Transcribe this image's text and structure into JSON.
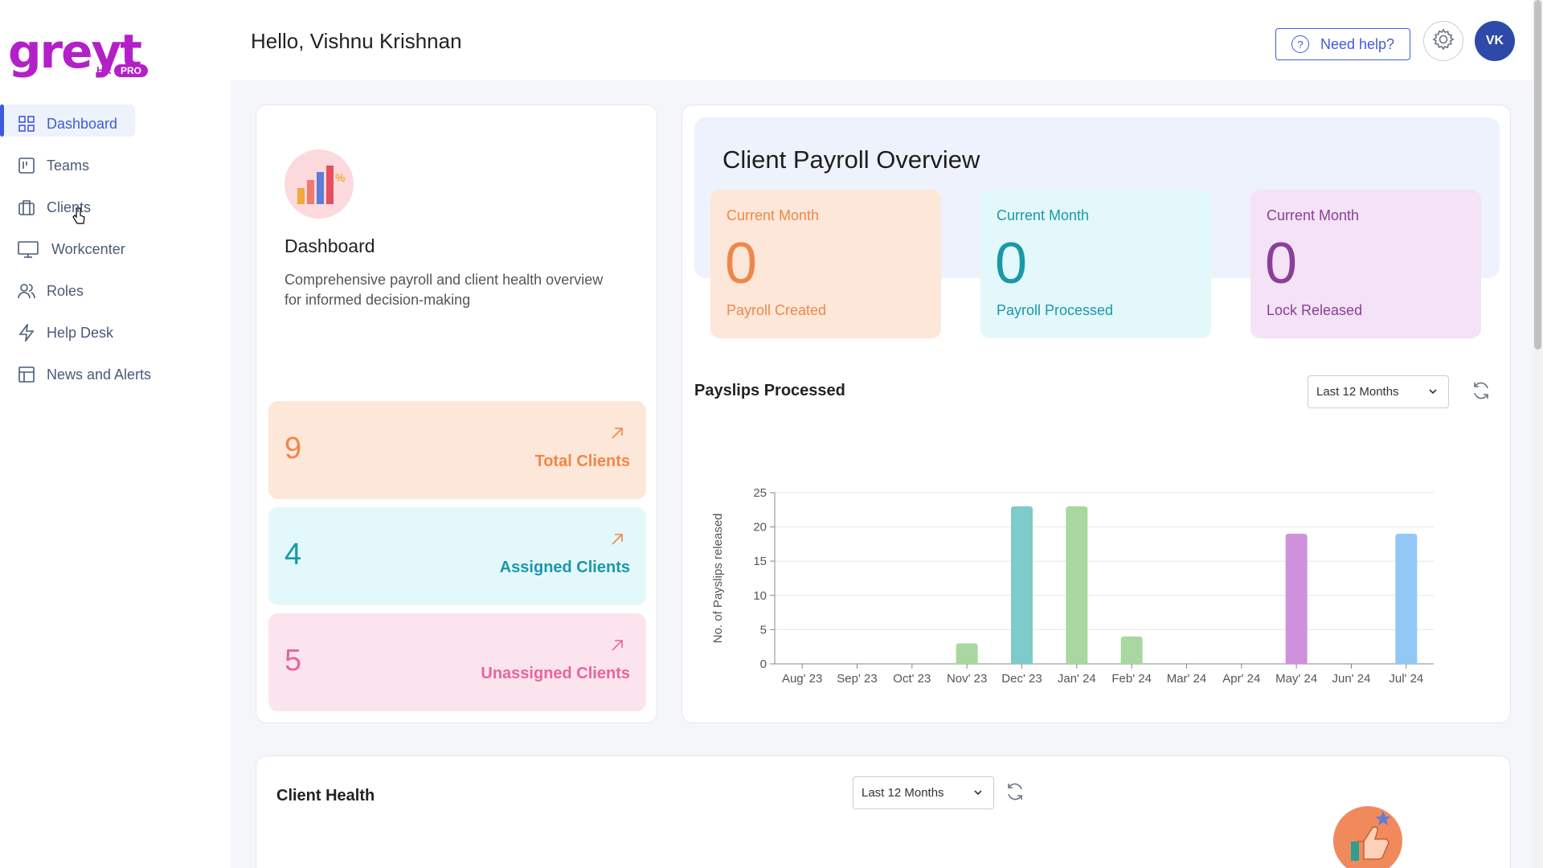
{
  "brand": {
    "logo_word": "greyt",
    "logo_hr": "HR",
    "logo_pro": "PRO"
  },
  "sidebar": {
    "items": [
      {
        "label": "Dashboard",
        "icon": "grid-icon",
        "active": true
      },
      {
        "label": "Teams",
        "icon": "board-icon"
      },
      {
        "label": "Clients",
        "icon": "briefcase-icon"
      },
      {
        "label": "Workcenter",
        "icon": "monitor-icon"
      },
      {
        "label": "Roles",
        "icon": "users-icon"
      },
      {
        "label": "Help Desk",
        "icon": "lightning-icon"
      },
      {
        "label": "News and Alerts",
        "icon": "layout-icon"
      }
    ]
  },
  "header": {
    "greeting": "Hello, Vishnu Krishnan",
    "help_label": "Need help?",
    "avatar_initials": "VK"
  },
  "dashboard_card": {
    "title": "Dashboard",
    "description": "Comprehensive payroll and client health overview for informed decision-making",
    "stats": [
      {
        "value": "9",
        "label": "Total Clients",
        "color": "#f0864a",
        "bg": "#fde7d9"
      },
      {
        "value": "4",
        "label": "Assigned Clients",
        "color": "#1a98a8",
        "bg": "#e3f8fb"
      },
      {
        "value": "5",
        "label": "Unassigned Clients",
        "color": "#e8659c",
        "bg": "#fce4ef"
      }
    ]
  },
  "payroll_overview": {
    "title": "Client Payroll Overview",
    "cards": [
      {
        "period": "Current Month",
        "value": "0",
        "label": "Payroll Created",
        "color": "#f0864a",
        "bg": "#fde7d9"
      },
      {
        "period": "Current Month",
        "value": "0",
        "label": "Payroll Processed",
        "color": "#1a98a8",
        "bg": "#e3f8fb"
      },
      {
        "period": "Current Month",
        "value": "0",
        "label": "Lock Released",
        "color": "#8a3f98",
        "bg": "#f4e2f6"
      }
    ]
  },
  "payslips": {
    "title": "Payslips Processed",
    "filter": "Last 12 Months"
  },
  "chart_data": {
    "type": "bar",
    "title": "",
    "xlabel": "",
    "ylabel": "No. of Payslips released",
    "ylim": [
      0,
      25
    ],
    "yticks": [
      0,
      5,
      10,
      15,
      20,
      25
    ],
    "grid": true,
    "categories": [
      "Aug' 23",
      "Sep' 23",
      "Oct' 23",
      "Nov' 23",
      "Dec' 23",
      "Jan' 24",
      "Feb' 24",
      "Mar' 24",
      "Apr' 24",
      "May' 24",
      "Jun' 24",
      "Jul' 24"
    ],
    "values": [
      0,
      0,
      0,
      3,
      23,
      23,
      4,
      0,
      0,
      19,
      0,
      19
    ],
    "colors": [
      "#a8d8a0",
      "#a8d8a0",
      "#a8d8a0",
      "#a8d8a0",
      "#7ecbc9",
      "#a8d8a0",
      "#a8d8a0",
      "#a8d8a0",
      "#a8d8a0",
      "#cf90dc",
      "#a8d8a0",
      "#92c8f5"
    ]
  },
  "client_health": {
    "title": "Client Health",
    "filter": "Last 12 Months"
  }
}
